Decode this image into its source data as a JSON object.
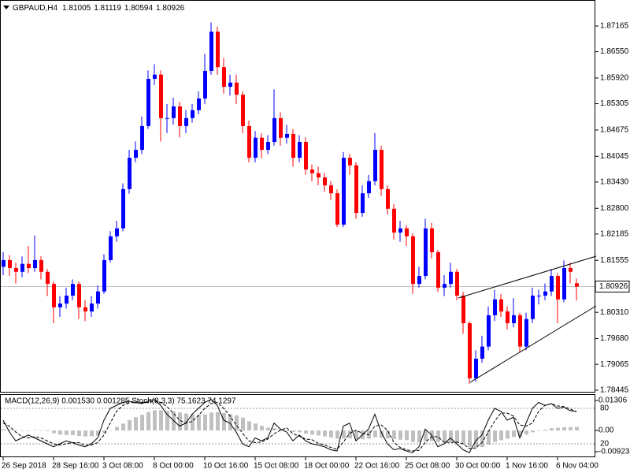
{
  "chart_data": [
    {
      "type": "candlestick",
      "title": "GBPAUD,H4",
      "categories": [
        "26 Sep 2018",
        null,
        null,
        null,
        null,
        null,
        null,
        null,
        "28 Sep 16:00",
        null,
        null,
        null,
        null,
        null,
        null,
        null,
        "3 Oct 08:00",
        null,
        null,
        null,
        null,
        null,
        null,
        null,
        "8 Oct 00:00",
        null,
        null,
        null,
        null,
        null,
        null,
        null,
        "10 Oct 16:00",
        null,
        null,
        null,
        null,
        null,
        null,
        null,
        "15 Oct 08:00",
        null,
        null,
        null,
        null,
        null,
        null,
        null,
        "18 Oct 00:00",
        null,
        null,
        null,
        null,
        null,
        null,
        null,
        "22 Oct 16:00",
        null,
        null,
        null,
        null,
        null,
        null,
        null,
        "25 Oct 08:00",
        null,
        null,
        null,
        null,
        null,
        null,
        null,
        "30 Oct 00:00",
        null,
        null,
        null,
        null,
        null,
        null,
        null,
        "1 Nov 16:00",
        null,
        null,
        null,
        null,
        null,
        null,
        null,
        "6 Nov 04:00",
        null,
        null,
        null
      ],
      "open": [
        1.814,
        1.8156,
        1.8137,
        1.8128,
        1.8147,
        1.8137,
        1.8156,
        1.8128,
        1.8099,
        1.8043,
        1.8052,
        1.8071,
        1.8099,
        1.8043,
        1.8033,
        1.8052,
        1.8081,
        1.8156,
        1.8213,
        1.8232,
        1.8326,
        1.8401,
        1.842,
        1.8477,
        1.859,
        1.86,
        1.8496,
        1.8496,
        1.8524,
        1.8477,
        1.8496,
        1.8515,
        1.8543,
        1.8609,
        1.8703,
        1.8618,
        1.8571,
        1.8581,
        1.8552,
        1.8477,
        1.8401,
        1.8449,
        1.842,
        1.8439,
        1.8496,
        1.8449,
        1.8458,
        1.8401,
        1.8439,
        1.8373,
        1.8364,
        1.8354,
        1.8335,
        1.8316,
        1.8241,
        1.8401,
        1.8383,
        1.8269,
        1.8316,
        1.8345,
        1.842,
        1.8326,
        1.8279,
        1.8222,
        1.8232,
        1.8213,
        1.8099,
        1.8118,
        1.8232,
        1.8175,
        1.809,
        1.8099,
        1.8128,
        1.8071,
        1.8005,
        1.7873,
        1.792,
        1.7949,
        1.8024,
        1.8062,
        1.8033,
        1.8005,
        1.8024,
        1.7949,
        1.8015,
        1.8071,
        1.8071,
        1.8081,
        1.8118,
        1.8062,
        1.8137,
        1.81005
      ],
      "high": [
        1.8175,
        1.8168,
        1.815,
        1.8165,
        1.819,
        1.8215,
        1.8165,
        1.8135,
        1.8105,
        1.807,
        1.809,
        1.811,
        1.8105,
        1.806,
        1.807,
        1.8095,
        1.817,
        1.8225,
        1.825,
        1.834,
        1.842,
        1.844,
        1.85,
        1.861,
        1.8625,
        1.861,
        1.853,
        1.8545,
        1.8535,
        1.8515,
        1.853,
        1.856,
        1.865,
        1.8725,
        1.8715,
        1.864,
        1.86,
        1.86,
        1.856,
        1.849,
        1.8465,
        1.846,
        1.8455,
        1.8565,
        1.851,
        1.848,
        1.847,
        1.8455,
        1.845,
        1.8385,
        1.838,
        1.8365,
        1.8345,
        1.8325,
        1.8415,
        1.841,
        1.839,
        1.8335,
        1.836,
        1.846,
        1.843,
        1.8335,
        1.829,
        1.825,
        1.824,
        1.822,
        1.814,
        1.8255,
        1.8245,
        1.818,
        1.812,
        1.815,
        1.8135,
        1.808,
        1.801,
        1.794,
        1.7975,
        1.8045,
        1.8085,
        1.8075,
        1.8045,
        1.8065,
        1.803,
        1.803,
        1.809,
        1.8085,
        1.81,
        1.8135,
        1.8125,
        1.8155,
        1.815,
        1.81119
      ],
      "low": [
        1.812,
        1.8118,
        1.81,
        1.8115,
        1.8125,
        1.8128,
        1.811,
        1.807,
        1.8005,
        1.802,
        1.804,
        1.806,
        1.8015,
        1.801,
        1.802,
        1.804,
        1.8075,
        1.815,
        1.82,
        1.8225,
        1.8315,
        1.839,
        1.841,
        1.847,
        1.8575,
        1.844,
        1.846,
        1.848,
        1.845,
        1.846,
        1.8485,
        1.8505,
        1.853,
        1.86,
        1.86,
        1.8555,
        1.855,
        1.853,
        1.846,
        1.839,
        1.839,
        1.84,
        1.841,
        1.843,
        1.843,
        1.8435,
        1.838,
        1.839,
        1.836,
        1.8345,
        1.8335,
        1.832,
        1.83,
        1.8235,
        1.8235,
        1.836,
        1.8255,
        1.826,
        1.8305,
        1.8335,
        1.831,
        1.8265,
        1.8205,
        1.82,
        1.819,
        1.8075,
        1.809,
        1.811,
        1.816,
        1.808,
        1.807,
        1.809,
        1.806,
        1.798,
        1.786,
        1.7865,
        1.791,
        1.794,
        1.801,
        1.802,
        1.799,
        1.7995,
        1.7935,
        1.794,
        1.8005,
        1.805,
        1.806,
        1.807,
        1.8005,
        1.8055,
        1.81,
        1.80594
      ],
      "close": [
        1.8156,
        1.8137,
        1.8128,
        1.8147,
        1.8137,
        1.8156,
        1.8128,
        1.8099,
        1.8043,
        1.8052,
        1.8071,
        1.8099,
        1.8043,
        1.8033,
        1.8052,
        1.8081,
        1.8156,
        1.8213,
        1.8232,
        1.8326,
        1.8401,
        1.842,
        1.8477,
        1.859,
        1.86,
        1.8496,
        1.8496,
        1.8524,
        1.8477,
        1.8496,
        1.8515,
        1.8543,
        1.8609,
        1.8703,
        1.8618,
        1.8571,
        1.8581,
        1.8552,
        1.8477,
        1.8401,
        1.8449,
        1.842,
        1.8439,
        1.8496,
        1.8449,
        1.8458,
        1.8401,
        1.8439,
        1.8373,
        1.8364,
        1.8354,
        1.8335,
        1.8316,
        1.8241,
        1.8401,
        1.8383,
        1.8269,
        1.8316,
        1.8345,
        1.842,
        1.8326,
        1.8279,
        1.8222,
        1.8232,
        1.8213,
        1.8099,
        1.8118,
        1.8232,
        1.8175,
        1.809,
        1.8099,
        1.8128,
        1.8071,
        1.8005,
        1.7873,
        1.792,
        1.7949,
        1.8024,
        1.8062,
        1.8033,
        1.8005,
        1.8024,
        1.7949,
        1.8015,
        1.8071,
        1.8071,
        1.8081,
        1.8118,
        1.8062,
        1.8137,
        1.8128,
        1.80926
      ],
      "up_color": "#0000ff",
      "down_color": "#ff0000",
      "ylim": [
        1.78407,
        1.87788
      ],
      "yticks": [
        1.87165,
        {
          "value": 1.8655,
          "label": "1.86550"
        },
        {
          "value": 1.8592,
          "label": "1.85920"
        },
        1.85305,
        1.84675,
        1.84045,
        {
          "value": 1.8343,
          "label": "1.83430"
        },
        {
          "value": 1.828,
          "label": "1.82800"
        },
        1.82185,
        1.81555,
        {
          "value": 1.8031,
          "label": "1.80310"
        },
        {
          "value": 1.7968,
          "label": "1.79680"
        },
        1.79065,
        1.78445
      ]
    },
    {
      "type": "macd_stoch",
      "title": "MACD(12,26,9) 0.001530 0.001285  Stoch(8,3,3) 75.1623 74.1297",
      "values": [
        0.0005,
        0.0004,
        0.0002,
        0.0001,
        0,
        0.0002,
        0,
        -0.0003,
        -0.0012,
        -0.0018,
        -0.002,
        -0.002,
        -0.0024,
        -0.0026,
        -0.0025,
        -0.0022,
        -0.0012,
        0.0002,
        0.0015,
        0.003,
        0.0045,
        0.0058,
        0.0068,
        0.008,
        0.0088,
        0.0088,
        0.0085,
        0.0082,
        0.0078,
        0.0074,
        0.007,
        0.0068,
        0.007,
        0.0078,
        0.008,
        0.0076,
        0.0072,
        0.0066,
        0.0056,
        0.004,
        0.003,
        0.002,
        0.0012,
        0.001,
        0.0004,
        0,
        -0.0006,
        -0.0008,
        -0.0014,
        -0.0018,
        -0.0022,
        -0.0026,
        -0.003,
        -0.0036,
        -0.0034,
        -0.0034,
        -0.0038,
        -0.0038,
        -0.0036,
        -0.003,
        -0.0032,
        -0.0034,
        -0.0038,
        -0.004,
        -0.0042,
        -0.005,
        -0.0052,
        -0.0046,
        -0.0046,
        -0.005,
        -0.0052,
        -0.005,
        -0.0054,
        -0.006,
        -0.0072,
        -0.0074,
        -0.0072,
        -0.0062,
        -0.005,
        -0.0042,
        -0.0036,
        -0.0028,
        -0.0026,
        -0.0018,
        -0.0008,
        -0.0002,
        0.0004,
        0.001,
        0.0012,
        0.0014,
        0.0015,
        0.00153
      ],
      "color": "#c0c0c0",
      "series": [
        {
          "axis": "y2",
          "color": "#000000",
          "dash": false,
          "values": [
            60,
            40,
            25,
            30,
            35,
            30,
            25,
            20,
            15,
            20,
            25,
            22,
            18,
            15,
            20,
            30,
            60,
            80,
            85,
            90,
            92,
            90,
            88,
            92,
            95,
            85,
            70,
            60,
            50,
            55,
            70,
            80,
            90,
            95,
            85,
            60,
            55,
            40,
            20,
            15,
            30,
            25,
            30,
            55,
            45,
            40,
            25,
            35,
            25,
            20,
            18,
            15,
            10,
            8,
            50,
            55,
            25,
            35,
            45,
            70,
            40,
            20,
            10,
            12,
            8,
            5,
            15,
            45,
            35,
            15,
            20,
            30,
            20,
            10,
            5,
            25,
            35,
            60,
            80,
            75,
            60,
            65,
            30,
            55,
            80,
            90,
            85,
            88,
            80,
            82,
            76,
            75.1623
          ]
        },
        {
          "axis": "y2",
          "color": "#000000",
          "dash": true,
          "values": [
            55,
            50,
            40,
            32,
            30,
            32,
            30,
            25,
            20,
            18,
            20,
            22,
            22,
            18,
            18,
            22,
            35,
            55,
            75,
            85,
            89,
            91,
            90,
            90,
            92,
            90,
            83,
            72,
            60,
            55,
            58,
            68,
            80,
            88,
            90,
            80,
            67,
            52,
            38,
            25,
            22,
            23,
            28,
            37,
            43,
            47,
            37,
            33,
            28,
            27,
            21,
            18,
            14,
            11,
            23,
            38,
            43,
            38,
            35,
            50,
            52,
            43,
            23,
            14,
            10,
            8,
            9,
            22,
            32,
            32,
            23,
            22,
            23,
            20,
            12,
            13,
            22,
            40,
            58,
            72,
            72,
            67,
            52,
            50,
            55,
            75,
            85,
            88,
            84,
            83,
            79,
            74.1297
          ]
        }
      ],
      "ylim": [
        -0.009237,
        0.01306
      ],
      "yticks": [
        0.01306,
        {
          "value": 0,
          "label": "0.00"
        },
        -0.009237
      ],
      "y2lim": [
        0,
        100
      ],
      "y2ticks": [
        80,
        20
      ]
    }
  ]
}
